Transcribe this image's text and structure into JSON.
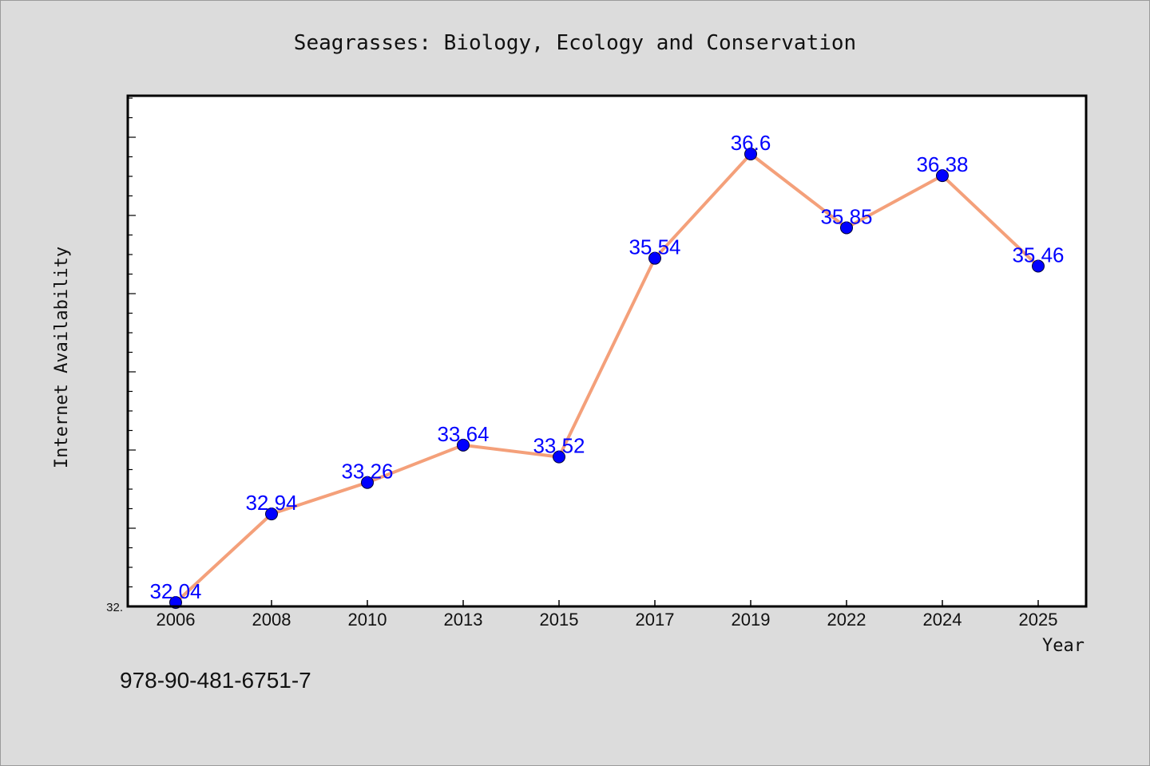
{
  "isbn": "978-90-481-6751-7",
  "colors": {
    "background": "#dcdcdc",
    "plot_background": "#ffffff",
    "line": "#f4a07a",
    "marker": "#0000ff",
    "data_label": "#0000ff"
  },
  "chart_data": {
    "type": "line",
    "title": "Seagrasses: Biology, Ecology and Conservation",
    "xlabel": "Year",
    "ylabel": "Internet Availability",
    "ymin_label": "32.",
    "ylim": [
      32.0,
      36.6
    ],
    "grid": false,
    "categories": [
      "2006",
      "2008",
      "2010",
      "2013",
      "2015",
      "2017",
      "2019",
      "2022",
      "2024",
      "2025"
    ],
    "series": [
      {
        "values": [
          32.04,
          32.94,
          33.26,
          33.64,
          33.52,
          35.54,
          36.6,
          35.85,
          36.38,
          35.46
        ],
        "labels": [
          "32.04",
          "32.94",
          "33.26",
          "33.64",
          "33.52",
          "35.54",
          "36.6",
          "35.85",
          "36.38",
          "35.46"
        ]
      }
    ]
  }
}
